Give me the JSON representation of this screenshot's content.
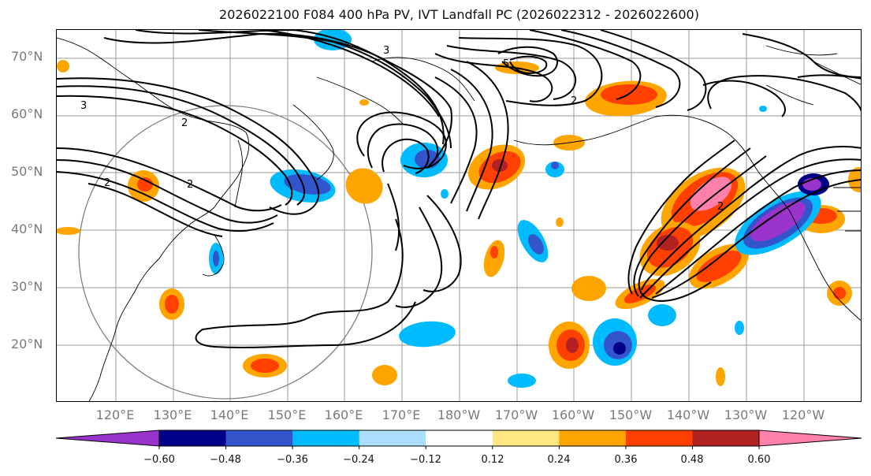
{
  "title": "2026022100 F084 400 hPa PV, IVT Landfall PC (2026022312 - 2026022600)",
  "map": {
    "projection": "equirectangular",
    "lat_labels": [
      "70°N",
      "60°N",
      "50°N",
      "40°N",
      "30°N",
      "20°N"
    ],
    "lon_labels": [
      "120°E",
      "130°E",
      "140°E",
      "150°E",
      "160°E",
      "170°E",
      "180°W",
      "170°W",
      "160°W",
      "150°W",
      "140°W",
      "130°W",
      "120°W"
    ],
    "gridlines": true,
    "contour_labels": [
      "3",
      "2",
      "5",
      "2",
      "2",
      "3",
      "2",
      "2"
    ],
    "range_ring": "circle centered near 140°E, 35°N"
  },
  "colorbar": {
    "tick_labels": [
      "−0.60",
      "−0.48",
      "−0.36",
      "−0.24",
      "−0.12",
      "0.12",
      "0.24",
      "0.36",
      "0.48",
      "0.60"
    ],
    "colors": [
      "#9933cc",
      "#000088",
      "#3355cc",
      "#00bbff",
      "#aadeff",
      "#ffffff",
      "#ffe680",
      "#ffa500",
      "#ff4000",
      "#b22222",
      "#ff80aa"
    ],
    "extend": "both"
  }
}
